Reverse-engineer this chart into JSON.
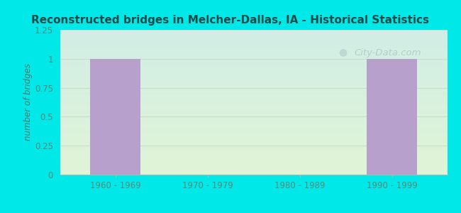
{
  "title": "Reconstructed bridges in Melcher-Dallas, IA - Historical Statistics",
  "categories": [
    "1960 - 1969",
    "1970 - 1979",
    "1980 - 1989",
    "1990 - 1999"
  ],
  "values": [
    1,
    0,
    0,
    1
  ],
  "bar_color": "#b8a0cc",
  "ylabel": "number of bridges",
  "ylim": [
    0,
    1.25
  ],
  "yticks": [
    0,
    0.25,
    0.5,
    0.75,
    1,
    1.25
  ],
  "background_outer": "#00e8e8",
  "background_top": "#cce8e8",
  "background_bottom": "#d8efd8",
  "title_color": "#1a4a4a",
  "axis_label_color": "#4a7a6a",
  "tick_label_color": "#5a8a7a",
  "grid_color": "#c8dcc8",
  "watermark_text": "City-Data.com",
  "watermark_color": "#b0c8c8"
}
